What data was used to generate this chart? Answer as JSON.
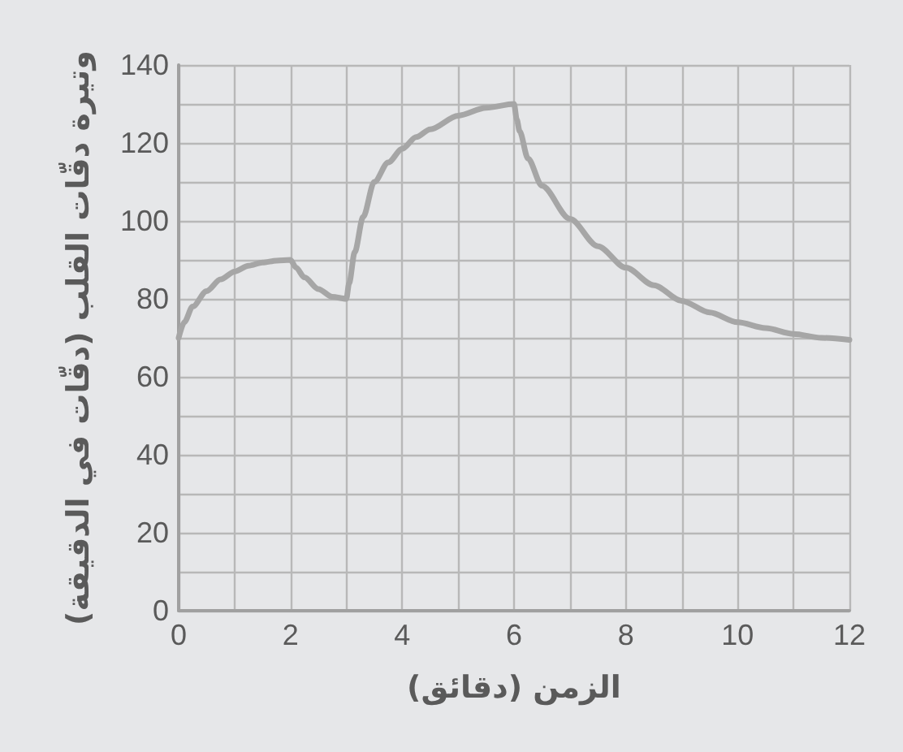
{
  "chart_data": {
    "type": "line",
    "xlabel": "الزمن (دقائق)",
    "ylabel": "وتيرة دقّات القلب (دقّات في الدقيقة)",
    "series": [
      {
        "color": "#a6a6a6",
        "x": [
          0,
          0.1,
          0.25,
          0.5,
          0.75,
          1,
          1.25,
          1.5,
          1.75,
          2,
          2.1,
          2.25,
          2.5,
          2.75,
          3,
          3.05,
          3.15,
          3.3,
          3.5,
          3.75,
          4,
          4.25,
          4.5,
          5,
          5.5,
          6,
          6.05,
          6.1,
          6.25,
          6.5,
          7,
          7.5,
          8,
          8.5,
          9,
          9.5,
          10,
          10.5,
          11,
          11.5,
          12
        ],
        "values": [
          70,
          74,
          78,
          82,
          85,
          87,
          88.5,
          89.3,
          89.8,
          90,
          88,
          85.5,
          82.5,
          80.5,
          80,
          84,
          92,
          101,
          110,
          115,
          118.5,
          121.5,
          123.5,
          127,
          129,
          130,
          126,
          123,
          116,
          109,
          100.5,
          93.5,
          88,
          83.5,
          79.5,
          76.5,
          74,
          72.5,
          71,
          70,
          69.5
        ]
      }
    ],
    "xlim": [
      0,
      12
    ],
    "ylim": [
      0,
      140
    ],
    "xticks": [
      0,
      {
        "value": 1,
        "label": null
      },
      2,
      {
        "value": 3,
        "label": null
      },
      4,
      {
        "value": 5,
        "label": null
      },
      6,
      {
        "value": 7,
        "label": null
      },
      8,
      {
        "value": 9,
        "label": null
      },
      10,
      {
        "value": 11,
        "label": null
      },
      12
    ],
    "yticks": [
      0,
      {
        "value": 10,
        "label": null
      },
      20,
      {
        "value": 30,
        "label": null
      },
      40,
      {
        "value": 50,
        "label": null
      },
      60,
      {
        "value": 70,
        "label": null
      },
      80,
      {
        "value": 90,
        "label": null
      },
      100,
      {
        "value": 110,
        "label": null
      },
      120,
      {
        "value": 130,
        "label": null
      },
      140
    ],
    "grid": true,
    "marker": "none",
    "line_style": "solid"
  }
}
